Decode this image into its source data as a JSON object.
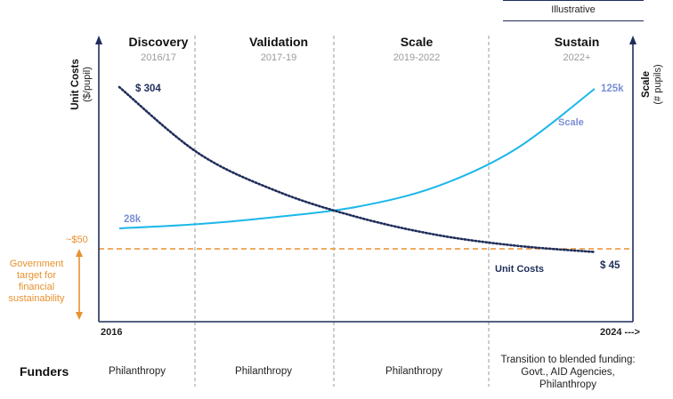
{
  "badge": "Illustrative",
  "y_left_label": {
    "line1": "Unit Costs",
    "line2": "($/pupil)"
  },
  "y_right_label": {
    "line1": "Scale",
    "line2": "(# pupils)"
  },
  "phases": [
    {
      "name": "Discovery",
      "period": "2016/17"
    },
    {
      "name": "Validation",
      "period": "2017-19"
    },
    {
      "name": "Scale",
      "period": "2019-2022"
    },
    {
      "name": "Sustain",
      "period": "2022+"
    }
  ],
  "x_start_label": "2016",
  "x_end_label": "2024 --->",
  "funders_label": "Funders",
  "funders": [
    [
      "Philanthropy"
    ],
    [
      "Philanthropy"
    ],
    [
      "Philanthropy"
    ],
    [
      "Transition to blended funding:",
      "Govt., AID Agencies,",
      "Philanthropy"
    ]
  ],
  "government_target": {
    "label": "~$50",
    "note": "Government target for financial sustainability"
  },
  "govt_note_lines": [
    "Government",
    "target for",
    "financial",
    "sustainability"
  ],
  "chart_data": {
    "type": "line",
    "series": [
      {
        "name": "Unit Costs",
        "start_label": "$ 304",
        "end_label": "$ 45",
        "values": [
          304,
          200,
          140,
          100,
          72,
          55,
          45
        ],
        "color": "#1f2d5a",
        "style": "dotted"
      },
      {
        "name": "Scale",
        "start_label": "28k",
        "end_label": "125k",
        "values": [
          28,
          31,
          36,
          43,
          57,
          83,
          125
        ],
        "color": "#1ab7ea",
        "style": "solid"
      }
    ],
    "x": [
      "2016",
      "",
      "",
      "",
      "",
      "",
      "2024"
    ],
    "reference_line": {
      "label": "~$50",
      "value": 50,
      "color": "#e8912d"
    },
    "phase_dividers": 3,
    "colors": {
      "axis": "#1f2d5a",
      "scale_label": "#7b8fd6",
      "target": "#e8912d",
      "divider": "#9a9a9a"
    }
  }
}
